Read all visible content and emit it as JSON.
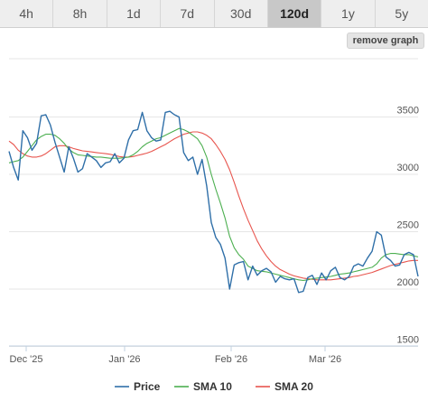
{
  "range_tabs": [
    {
      "label": "4h",
      "active": false
    },
    {
      "label": "8h",
      "active": false
    },
    {
      "label": "1d",
      "active": false
    },
    {
      "label": "7d",
      "active": false
    },
    {
      "label": "30d",
      "active": false
    },
    {
      "label": "120d",
      "active": true
    },
    {
      "label": "1y",
      "active": false
    },
    {
      "label": "5y",
      "active": false
    }
  ],
  "remove_graph_label": "remove graph",
  "chart_data": {
    "type": "line",
    "x_ticks": [
      "Dec '25",
      "Jan '26",
      "Feb '26",
      "Mar '26"
    ],
    "y_ticks": [
      1500,
      2000,
      2500,
      3000,
      3500
    ],
    "ylim": [
      1450,
      4000
    ],
    "grid": true,
    "legend_position": "bottom-center",
    "series": [
      {
        "name": "Price",
        "color": "#2f6fa8",
        "values": [
          3200,
          3060,
          2950,
          3380,
          3320,
          3210,
          3270,
          3510,
          3520,
          3430,
          3280,
          3150,
          3020,
          3240,
          3140,
          3020,
          3050,
          3180,
          3150,
          3120,
          3060,
          3100,
          3110,
          3180,
          3100,
          3140,
          3300,
          3380,
          3390,
          3540,
          3380,
          3320,
          3290,
          3300,
          3540,
          3550,
          3520,
          3500,
          3190,
          3120,
          3150,
          3000,
          3130,
          2900,
          2580,
          2450,
          2390,
          2270,
          2000,
          2210,
          2230,
          2240,
          2080,
          2200,
          2120,
          2160,
          2180,
          2150,
          2060,
          2110,
          2090,
          2080,
          2090,
          1970,
          1980,
          2100,
          2120,
          2040,
          2140,
          2080,
          2160,
          2190,
          2100,
          2080,
          2110,
          2200,
          2220,
          2200,
          2270,
          2330,
          2500,
          2470,
          2280,
          2250,
          2200,
          2210,
          2300,
          2320,
          2300,
          2110
        ]
      },
      {
        "name": "SMA 10",
        "color": "#4caf50",
        "values": [
          3100,
          3110,
          3120,
          3150,
          3200,
          3250,
          3300,
          3330,
          3350,
          3350,
          3340,
          3310,
          3270,
          3220,
          3190,
          3170,
          3165,
          3160,
          3155,
          3150,
          3150,
          3145,
          3140,
          3140,
          3140,
          3145,
          3150,
          3170,
          3200,
          3240,
          3270,
          3290,
          3310,
          3320,
          3340,
          3360,
          3380,
          3400,
          3390,
          3370,
          3340,
          3310,
          3250,
          3150,
          3000,
          2870,
          2750,
          2620,
          2460,
          2360,
          2300,
          2260,
          2200,
          2180,
          2160,
          2155,
          2150,
          2140,
          2130,
          2120,
          2110,
          2100,
          2090,
          2080,
          2075,
          2080,
          2090,
          2095,
          2100,
          2105,
          2110,
          2120,
          2130,
          2135,
          2140,
          2150,
          2160,
          2170,
          2180,
          2190,
          2220,
          2270,
          2300,
          2310,
          2310,
          2305,
          2300,
          2300,
          2290,
          2280
        ]
      },
      {
        "name": "SMA 20",
        "color": "#e8554e",
        "values": [
          3290,
          3260,
          3210,
          3180,
          3160,
          3150,
          3150,
          3160,
          3180,
          3210,
          3240,
          3250,
          3250,
          3240,
          3225,
          3215,
          3205,
          3200,
          3195,
          3190,
          3185,
          3180,
          3175,
          3165,
          3155,
          3150,
          3150,
          3155,
          3165,
          3175,
          3185,
          3200,
          3220,
          3240,
          3260,
          3285,
          3310,
          3330,
          3350,
          3360,
          3370,
          3370,
          3360,
          3340,
          3310,
          3260,
          3200,
          3130,
          3040,
          2930,
          2810,
          2700,
          2600,
          2510,
          2420,
          2350,
          2290,
          2240,
          2200,
          2170,
          2150,
          2130,
          2115,
          2105,
          2095,
          2090,
          2085,
          2080,
          2080,
          2080,
          2080,
          2085,
          2090,
          2095,
          2100,
          2110,
          2115,
          2125,
          2135,
          2145,
          2160,
          2175,
          2190,
          2205,
          2215,
          2225,
          2235,
          2245,
          2250,
          2250
        ]
      }
    ]
  }
}
